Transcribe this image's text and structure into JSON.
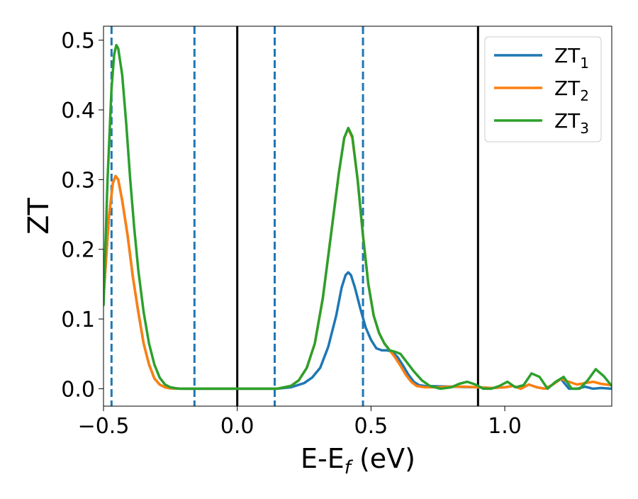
{
  "chart_data": {
    "type": "line",
    "xlabel_main": "E-E",
    "xlabel_sub": "f",
    "xlabel_tail": " (eV)",
    "ylabel": "ZT",
    "xlim": [
      -0.5,
      1.4
    ],
    "ylim": [
      -0.025,
      0.52
    ],
    "xticks": [
      {
        "value": -0.5,
        "label": "−0.5"
      },
      {
        "value": 0.0,
        "label": "0.0"
      },
      {
        "value": 0.5,
        "label": "0.5"
      },
      {
        "value": 1.0,
        "label": "1.0"
      }
    ],
    "yticks": [
      {
        "value": 0.0,
        "label": "0.0"
      },
      {
        "value": 0.1,
        "label": "0.1"
      },
      {
        "value": 0.2,
        "label": "0.2"
      },
      {
        "value": 0.3,
        "label": "0.3"
      },
      {
        "value": 0.4,
        "label": "0.4"
      },
      {
        "value": 0.5,
        "label": "0.5"
      }
    ],
    "grid": false,
    "legend_position": "top-right",
    "vlines_dashed": [
      -0.47,
      -0.16,
      0.14,
      0.47
    ],
    "vlines_solid": [
      0.0,
      0.9
    ],
    "dashed_line_color": "#1f77b4",
    "solid_line_color": "#000000",
    "series": [
      {
        "name": "ZT",
        "sub": "1",
        "color": "#1f77b4",
        "points": [
          [
            -0.5,
            0.13
          ],
          [
            -0.48,
            0.245
          ],
          [
            -0.465,
            0.295
          ],
          [
            -0.455,
            0.305
          ],
          [
            -0.445,
            0.3
          ],
          [
            -0.43,
            0.27
          ],
          [
            -0.41,
            0.22
          ],
          [
            -0.39,
            0.16
          ],
          [
            -0.37,
            0.11
          ],
          [
            -0.35,
            0.065
          ],
          [
            -0.33,
            0.035
          ],
          [
            -0.31,
            0.015
          ],
          [
            -0.29,
            0.006
          ],
          [
            -0.27,
            0.002
          ],
          [
            -0.25,
            0.0005
          ],
          [
            -0.2,
            0.0
          ],
          [
            0.0,
            0.0
          ],
          [
            0.15,
            0.0
          ],
          [
            0.2,
            0.002
          ],
          [
            0.25,
            0.008
          ],
          [
            0.28,
            0.016
          ],
          [
            0.31,
            0.03
          ],
          [
            0.34,
            0.06
          ],
          [
            0.37,
            0.105
          ],
          [
            0.39,
            0.145
          ],
          [
            0.405,
            0.163
          ],
          [
            0.415,
            0.167
          ],
          [
            0.425,
            0.163
          ],
          [
            0.44,
            0.145
          ],
          [
            0.46,
            0.115
          ],
          [
            0.48,
            0.088
          ],
          [
            0.5,
            0.07
          ],
          [
            0.52,
            0.058
          ],
          [
            0.54,
            0.055
          ],
          [
            0.56,
            0.055
          ],
          [
            0.58,
            0.053
          ],
          [
            0.6,
            0.045
          ],
          [
            0.62,
            0.033
          ],
          [
            0.64,
            0.02
          ],
          [
            0.66,
            0.01
          ],
          [
            0.68,
            0.005
          ],
          [
            0.7,
            0.004
          ],
          [
            0.75,
            0.0035
          ],
          [
            0.8,
            0.003
          ],
          [
            0.85,
            0.0025
          ],
          [
            0.9,
            0.002
          ],
          [
            0.95,
            0.001
          ],
          [
            1.0,
            0.002
          ],
          [
            1.03,
            0.004
          ],
          [
            1.06,
            0.0
          ],
          [
            1.09,
            0.006
          ],
          [
            1.12,
            0.002
          ],
          [
            1.15,
            0.0
          ],
          [
            1.18,
            0.006
          ],
          [
            1.21,
            0.014
          ],
          [
            1.24,
            0.0
          ],
          [
            1.27,
            0.0
          ],
          [
            1.3,
            0.003
          ],
          [
            1.33,
            0.0
          ],
          [
            1.36,
            0.001
          ],
          [
            1.4,
            0.0
          ]
        ]
      },
      {
        "name": "ZT",
        "sub": "2",
        "color": "#ff7f0e",
        "points": [
          [
            -0.5,
            0.13
          ],
          [
            -0.48,
            0.245
          ],
          [
            -0.465,
            0.295
          ],
          [
            -0.455,
            0.305
          ],
          [
            -0.445,
            0.3
          ],
          [
            -0.43,
            0.27
          ],
          [
            -0.41,
            0.22
          ],
          [
            -0.39,
            0.16
          ],
          [
            -0.37,
            0.11
          ],
          [
            -0.35,
            0.065
          ],
          [
            -0.33,
            0.035
          ],
          [
            -0.31,
            0.015
          ],
          [
            -0.29,
            0.006
          ],
          [
            -0.27,
            0.002
          ],
          [
            -0.25,
            0.0005
          ],
          [
            -0.2,
            0.0
          ],
          [
            0.0,
            0.0
          ],
          [
            0.15,
            0.0
          ],
          [
            0.2,
            0.004
          ],
          [
            0.23,
            0.012
          ],
          [
            0.26,
            0.03
          ],
          [
            0.29,
            0.065
          ],
          [
            0.32,
            0.13
          ],
          [
            0.35,
            0.22
          ],
          [
            0.38,
            0.31
          ],
          [
            0.4,
            0.36
          ],
          [
            0.415,
            0.373
          ],
          [
            0.43,
            0.36
          ],
          [
            0.45,
            0.3
          ],
          [
            0.47,
            0.22
          ],
          [
            0.49,
            0.15
          ],
          [
            0.51,
            0.105
          ],
          [
            0.53,
            0.08
          ],
          [
            0.55,
            0.065
          ],
          [
            0.57,
            0.055
          ],
          [
            0.59,
            0.045
          ],
          [
            0.61,
            0.033
          ],
          [
            0.63,
            0.02
          ],
          [
            0.65,
            0.01
          ],
          [
            0.67,
            0.004
          ],
          [
            0.7,
            0.002
          ],
          [
            0.75,
            0.002
          ],
          [
            0.8,
            0.003
          ],
          [
            0.85,
            0.003
          ],
          [
            0.9,
            0.002
          ],
          [
            0.95,
            0.001
          ],
          [
            1.0,
            0.002
          ],
          [
            1.03,
            0.004
          ],
          [
            1.06,
            0.0
          ],
          [
            1.09,
            0.006
          ],
          [
            1.12,
            0.002
          ],
          [
            1.15,
            0.0
          ],
          [
            1.18,
            0.006
          ],
          [
            1.21,
            0.014
          ],
          [
            1.24,
            0.01
          ],
          [
            1.27,
            0.006
          ],
          [
            1.3,
            0.008
          ],
          [
            1.33,
            0.01
          ],
          [
            1.36,
            0.007
          ],
          [
            1.4,
            0.005
          ]
        ]
      },
      {
        "name": "ZT",
        "sub": "3",
        "color": "#2ca02c",
        "points": [
          [
            -0.5,
            0.12
          ],
          [
            -0.485,
            0.3
          ],
          [
            -0.47,
            0.43
          ],
          [
            -0.46,
            0.48
          ],
          [
            -0.452,
            0.493
          ],
          [
            -0.445,
            0.488
          ],
          [
            -0.43,
            0.45
          ],
          [
            -0.415,
            0.38
          ],
          [
            -0.4,
            0.3
          ],
          [
            -0.385,
            0.23
          ],
          [
            -0.37,
            0.17
          ],
          [
            -0.35,
            0.11
          ],
          [
            -0.33,
            0.065
          ],
          [
            -0.31,
            0.035
          ],
          [
            -0.29,
            0.016
          ],
          [
            -0.27,
            0.006
          ],
          [
            -0.25,
            0.002
          ],
          [
            -0.22,
            0.0
          ],
          [
            0.0,
            0.0
          ],
          [
            0.15,
            0.0
          ],
          [
            0.2,
            0.004
          ],
          [
            0.23,
            0.012
          ],
          [
            0.26,
            0.03
          ],
          [
            0.29,
            0.065
          ],
          [
            0.32,
            0.13
          ],
          [
            0.35,
            0.22
          ],
          [
            0.38,
            0.31
          ],
          [
            0.4,
            0.36
          ],
          [
            0.415,
            0.374
          ],
          [
            0.43,
            0.362
          ],
          [
            0.45,
            0.3
          ],
          [
            0.47,
            0.22
          ],
          [
            0.49,
            0.15
          ],
          [
            0.51,
            0.105
          ],
          [
            0.53,
            0.08
          ],
          [
            0.55,
            0.065
          ],
          [
            0.57,
            0.055
          ],
          [
            0.59,
            0.053
          ],
          [
            0.61,
            0.05
          ],
          [
            0.63,
            0.04
          ],
          [
            0.66,
            0.025
          ],
          [
            0.69,
            0.012
          ],
          [
            0.72,
            0.004
          ],
          [
            0.76,
            0.0
          ],
          [
            0.8,
            0.002
          ],
          [
            0.83,
            0.007
          ],
          [
            0.86,
            0.01
          ],
          [
            0.89,
            0.006
          ],
          [
            0.92,
            0.0
          ],
          [
            0.95,
            0.0
          ],
          [
            0.98,
            0.004
          ],
          [
            1.01,
            0.01
          ],
          [
            1.04,
            0.002
          ],
          [
            1.07,
            0.005
          ],
          [
            1.1,
            0.022
          ],
          [
            1.13,
            0.017
          ],
          [
            1.16,
            0.0
          ],
          [
            1.19,
            0.01
          ],
          [
            1.22,
            0.017
          ],
          [
            1.25,
            0.0
          ],
          [
            1.28,
            0.0
          ],
          [
            1.31,
            0.012
          ],
          [
            1.34,
            0.028
          ],
          [
            1.37,
            0.018
          ],
          [
            1.4,
            0.004
          ]
        ]
      }
    ]
  }
}
